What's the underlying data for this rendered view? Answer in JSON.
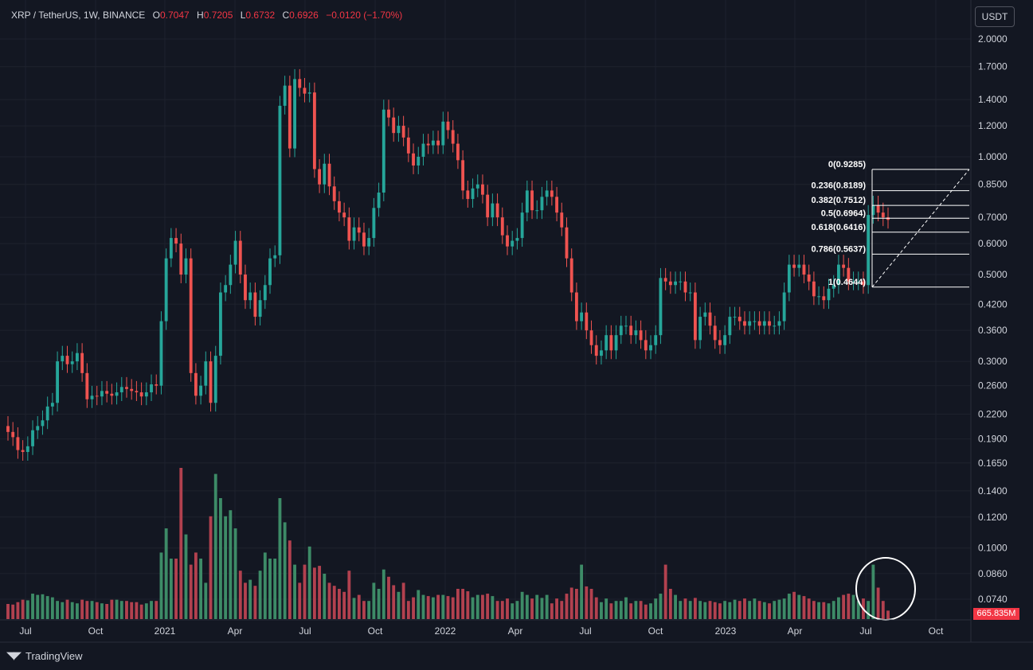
{
  "header": {
    "symbol": "XRP / TetherUS, 1W, BINANCE",
    "open_label": "O",
    "open_value": "0.7047",
    "high_label": "H",
    "high_value": "0.7205",
    "low_label": "L",
    "low_value": "0.6732",
    "close_label": "C",
    "close_value": "0.6926",
    "change": "−0.0120 (−1.70%)"
  },
  "currency_button": "USDT",
  "volume_label": "665.835M",
  "logo_text": "TradingView",
  "colors": {
    "up": "#26a69a",
    "down": "#ef5350",
    "up_volume": "#3d8b67",
    "down_volume": "#b2414f",
    "background": "#131722",
    "grid": "#1e222d",
    "text": "#d1d4dc"
  },
  "chart_data": {
    "type": "candlestick",
    "scale": "log",
    "y_ticks": [
      "2.0000",
      "1.7000",
      "1.4000",
      "1.2000",
      "1.0000",
      "0.8500",
      "0.7000",
      "0.6000",
      "0.5000",
      "0.4200",
      "0.3600",
      "0.3000",
      "0.2600",
      "0.2200",
      "0.1900",
      "0.1650",
      "0.1400",
      "0.1200",
      "0.1000",
      "0.0860",
      "0.0740"
    ],
    "x_ticks": [
      "Jul",
      "Oct",
      "2021",
      "Apr",
      "Jul",
      "Oct",
      "2022",
      "Apr",
      "Jul",
      "Oct",
      "2023",
      "Apr",
      "Jul",
      "Oct"
    ],
    "x_range": [
      "2020-06",
      "2023-11"
    ],
    "close": [
      0.198,
      0.192,
      0.178,
      0.176,
      0.182,
      0.2,
      0.205,
      0.212,
      0.23,
      0.235,
      0.3,
      0.31,
      0.295,
      0.3,
      0.315,
      0.28,
      0.24,
      0.245,
      0.244,
      0.252,
      0.248,
      0.245,
      0.25,
      0.258,
      0.255,
      0.252,
      0.25,
      0.244,
      0.25,
      0.262,
      0.26,
      0.38,
      0.55,
      0.62,
      0.6,
      0.5,
      0.55,
      0.28,
      0.245,
      0.26,
      0.3,
      0.235,
      0.31,
      0.45,
      0.47,
      0.53,
      0.61,
      0.5,
      0.43,
      0.45,
      0.39,
      0.43,
      0.47,
      0.55,
      0.56,
      1.35,
      1.52,
      1.05,
      1.58,
      1.5,
      1.45,
      1.46,
      0.93,
      0.85,
      0.96,
      0.84,
      0.77,
      0.72,
      0.7,
      0.61,
      0.66,
      0.64,
      0.59,
      0.62,
      0.74,
      0.81,
      1.32,
      1.26,
      1.15,
      1.2,
      1.12,
      1.02,
      0.95,
      1.0,
      1.08,
      1.07,
      1.1,
      1.07,
      1.23,
      1.17,
      1.08,
      0.98,
      0.82,
      0.78,
      0.83,
      0.85,
      0.8,
      0.7,
      0.76,
      0.7,
      0.63,
      0.59,
      0.61,
      0.62,
      0.72,
      0.82,
      0.73,
      0.73,
      0.79,
      0.82,
      0.79,
      0.72,
      0.66,
      0.55,
      0.45,
      0.38,
      0.4,
      0.36,
      0.33,
      0.31,
      0.32,
      0.35,
      0.32,
      0.35,
      0.37,
      0.37,
      0.35,
      0.36,
      0.34,
      0.32,
      0.33,
      0.35,
      0.49,
      0.48,
      0.47,
      0.48,
      0.48,
      0.45,
      0.45,
      0.34,
      0.39,
      0.4,
      0.37,
      0.34,
      0.33,
      0.35,
      0.39,
      0.39,
      0.38,
      0.37,
      0.38,
      0.38,
      0.37,
      0.38,
      0.37,
      0.37,
      0.38,
      0.45,
      0.53,
      0.52,
      0.53,
      0.5,
      0.48,
      0.44,
      0.44,
      0.43,
      0.46,
      0.47,
      0.53,
      0.52,
      0.48,
      0.48,
      0.48,
      0.47,
      0.71,
      0.75,
      0.72,
      0.7,
      0.69
    ],
    "volume": [
      0.025,
      0.024,
      0.028,
      0.032,
      0.031,
      0.042,
      0.04,
      0.041,
      0.038,
      0.036,
      0.03,
      0.028,
      0.032,
      0.028,
      0.026,
      0.032,
      0.03,
      0.03,
      0.028,
      0.026,
      0.025,
      0.032,
      0.032,
      0.03,
      0.03,
      0.028,
      0.028,
      0.024,
      0.026,
      0.03,
      0.03,
      0.11,
      0.15,
      0.1,
      0.1,
      0.25,
      0.14,
      0.09,
      0.11,
      0.1,
      0.06,
      0.17,
      0.24,
      0.2,
      0.17,
      0.18,
      0.15,
      0.08,
      0.06,
      0.065,
      0.055,
      0.08,
      0.11,
      0.1,
      0.1,
      0.2,
      0.16,
      0.13,
      0.09,
      0.06,
      0.09,
      0.12,
      0.085,
      0.088,
      0.075,
      0.06,
      0.055,
      0.05,
      0.045,
      0.08,
      0.035,
      0.04,
      0.03,
      0.03,
      0.06,
      0.05,
      0.082,
      0.07,
      0.056,
      0.045,
      0.06,
      0.03,
      0.036,
      0.048,
      0.04,
      0.038,
      0.036,
      0.04,
      0.04,
      0.038,
      0.036,
      0.05,
      0.05,
      0.046,
      0.036,
      0.04,
      0.04,
      0.042,
      0.038,
      0.03,
      0.03,
      0.034,
      0.026,
      0.03,
      0.045,
      0.04,
      0.034,
      0.04,
      0.035,
      0.04,
      0.026,
      0.034,
      0.03,
      0.042,
      0.052,
      0.05,
      0.09,
      0.054,
      0.05,
      0.036,
      0.028,
      0.034,
      0.026,
      0.03,
      0.03,
      0.036,
      0.026,
      0.03,
      0.03,
      0.024,
      0.026,
      0.034,
      0.042,
      0.09,
      0.05,
      0.04,
      0.03,
      0.034,
      0.03,
      0.035,
      0.03,
      0.028,
      0.03,
      0.028,
      0.026,
      0.03,
      0.028,
      0.032,
      0.03,
      0.034,
      0.03,
      0.034,
      0.03,
      0.028,
      0.026,
      0.03,
      0.032,
      0.034,
      0.042,
      0.045,
      0.04,
      0.038,
      0.034,
      0.03,
      0.028,
      0.028,
      0.026,
      0.03,
      0.036,
      0.04,
      0.042,
      0.04,
      0.03,
      0.034,
      0.03,
      0.09,
      0.052,
      0.03,
      0.014
    ],
    "fibonacci": [
      {
        "ratio": "0",
        "price": 0.9285,
        "label": "0(0.9285)"
      },
      {
        "ratio": "0.236",
        "price": 0.8189,
        "label": "0.236(0.8189)"
      },
      {
        "ratio": "0.382",
        "price": 0.7512,
        "label": "0.382(0.7512)"
      },
      {
        "ratio": "0.5",
        "price": 0.6964,
        "label": "0.5(0.6964)"
      },
      {
        "ratio": "0.618",
        "price": 0.6416,
        "label": "0.618(0.6416)"
      },
      {
        "ratio": "0.786",
        "price": 0.5637,
        "label": "0.786(0.5637)"
      },
      {
        "ratio": "1",
        "price": 0.4644,
        "label": "1(0.4644)"
      }
    ]
  }
}
